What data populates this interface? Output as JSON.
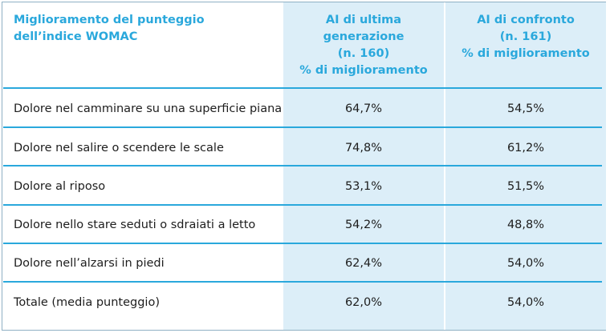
{
  "table": {
    "header": {
      "col0": [
        "Miglioramento del punteggio",
        "dell’indice WOMAC"
      ],
      "col1": [
        "AI di ultima generazione",
        "(n. 160)",
        "% di miglioramento"
      ],
      "col2": [
        "AI di confronto",
        "(n. 161)",
        "% di miglioramento"
      ]
    },
    "rows": [
      {
        "label": "Dolore nel camminare su una superficie piana",
        "v1": "64,7%",
        "v2": "54,5%"
      },
      {
        "label": "Dolore nel salire o scendere le scale",
        "v1": "74,8%",
        "v2": "61,2%"
      },
      {
        "label": "Dolore al riposo",
        "v1": "53,1%",
        "v2": "51,5%"
      },
      {
        "label": "Dolore nello stare seduti o sdraiati a letto",
        "v1": "54,2%",
        "v2": "48,8%"
      },
      {
        "label": "Dolore nell’alzarsi in piedi",
        "v1": "62,4%",
        "v2": "54,0%"
      },
      {
        "label": "Totale (media punteggio)",
        "v1": "62,0%",
        "v2": "54,0%"
      }
    ],
    "colors": {
      "accent": "#2aa8dc",
      "shade": "#dceef8",
      "border": "#8fb0c4"
    }
  }
}
